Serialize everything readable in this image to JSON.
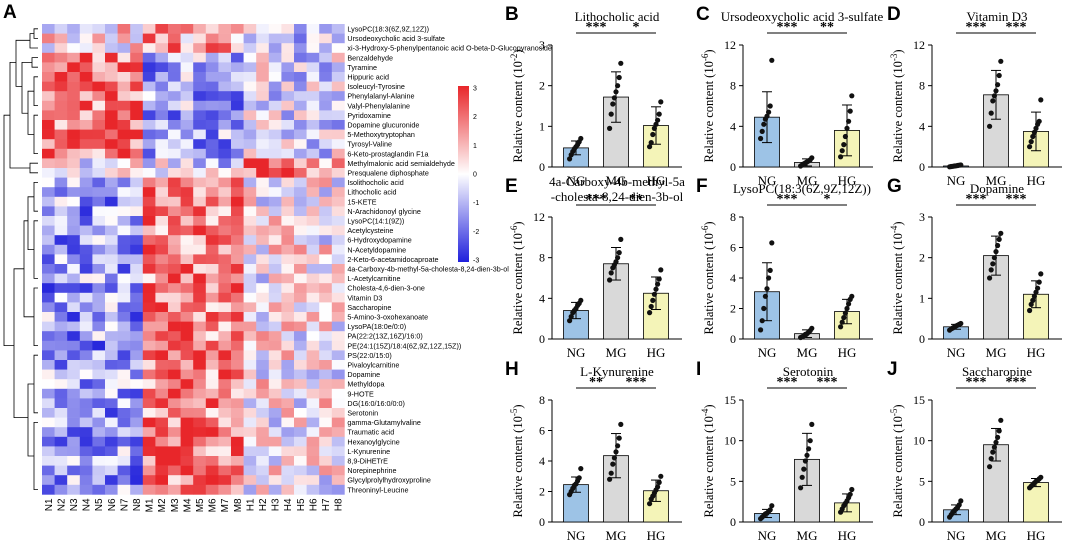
{
  "chart_data": [
    {
      "panel": "A",
      "type": "heatmap",
      "columns": [
        "N1",
        "N2",
        "N3",
        "N4",
        "N5",
        "N6",
        "N7",
        "N8",
        "M1",
        "M2",
        "M3",
        "M4",
        "M5",
        "M6",
        "M7",
        "M8",
        "H1",
        "H2",
        "H3",
        "H4",
        "H5",
        "H6",
        "H7",
        "H8"
      ],
      "rows": [
        "LysoPC(18:3(6Z,9Z,12Z))",
        "Ursodeoxycholic acid 3-sulfate",
        "xi-3-Hydroxy-5-phenylpentanoic acid O-beta-D-Glucopyranoside",
        "Benzaldehyde",
        "Tyramine",
        "Hippuric acid",
        "Isoleucyl-Tyrosine",
        "Phenylalanyl-Alanine",
        "Valyl-Phenylalanine",
        "Pyridoxamine",
        "Dopamine glucuronide",
        "5-Methoxytryptophan",
        "Tyrosyl-Valine",
        "6-Keto-prostaglandin F1a",
        "Methylmalonic acid semialdehyde",
        "Presqualene diphosphate",
        "Isolithocholic acid",
        "Lithocholic acid",
        "15-KETE",
        "N-Arachidonoyl glycine",
        "LysoPC(14:1(9Z))",
        "Acetylcysteine",
        "6-Hydroxydopamine",
        "N-Acetyldopamine",
        "2-Keto-6-acetamidocaproate",
        "4a-Carboxy-4b-methyl-5a-cholesta-8,24-dien-3b-ol",
        "L-Acetylcarnitine",
        "Cholesta-4,6-dien-3-one",
        "Vitamin D3",
        "Saccharopine",
        "5-Amino-3-oxohexanoate",
        "LysoPA(18:0e/0:0)",
        "PA(22:2(13Z,16Z)/16:0)",
        "PE(24:1(15Z)/18:4(6Z,9Z,12Z,15Z))",
        "PS(22:0/15:0)",
        "Pivaloylcarnitine",
        "Dopamine",
        "Methyldopa",
        "9-HOTE",
        "DG(16:0/16:0/0:0)",
        "Serotonin",
        "gamma-Glutamylvaline",
        "Traumatic acid",
        "Hexanoylglycine",
        "L-Kynurenine",
        "8,9-DiHETrE",
        "Norepinephrine",
        "Glycylprolylhydroxyproline",
        "Threoninyl-Leucine"
      ],
      "colorbar_ticks": [
        "3",
        "2",
        "1",
        "0",
        "-1",
        "-2",
        "-3"
      ],
      "colors": {
        "high": "#e8262a",
        "mid": "#ffffff",
        "low": "#1f1fdc"
      }
    },
    {
      "panel": "B",
      "type": "bar",
      "title": "Lithocholic acid",
      "unit_exp": "-2",
      "ylabel": "Relative content",
      "categories": [
        "NG",
        "MG",
        "HG"
      ],
      "values": [
        0.47,
        1.72,
        1.02
      ],
      "errors": [
        0.17,
        0.62,
        0.46
      ],
      "ylim": [
        0,
        3
      ],
      "yticks": [
        "0",
        "1",
        "2",
        "3"
      ],
      "sig": [
        {
          "pair": "NG-MG",
          "label": "***"
        },
        {
          "pair": "MG-HG",
          "label": "*"
        }
      ],
      "points": [
        [
          0.2,
          0.3,
          0.38,
          0.45,
          0.5,
          0.55,
          0.62,
          0.7
        ],
        [
          0.95,
          1.3,
          1.55,
          1.7,
          1.85,
          2.0,
          2.2,
          2.55
        ],
        [
          0.5,
          0.6,
          0.8,
          0.95,
          1.05,
          1.15,
          1.3,
          1.6
        ]
      ]
    },
    {
      "panel": "C",
      "type": "bar",
      "title": "Ursodeoxycholic acid 3-sulfate",
      "unit_exp": "-6",
      "ylabel": "Relative content",
      "categories": [
        "NG",
        "MG",
        "HG"
      ],
      "values": [
        4.9,
        0.45,
        3.6
      ],
      "errors": [
        2.5,
        0.35,
        2.5
      ],
      "ylim": [
        0,
        12
      ],
      "yticks": [
        "0",
        "4",
        "8",
        "12"
      ],
      "sig": [
        {
          "pair": "NG-MG",
          "label": "***"
        },
        {
          "pair": "MG-HG",
          "label": "**"
        }
      ],
      "points": [
        [
          2.8,
          3.5,
          4.2,
          4.7,
          5.0,
          5.4,
          6.0,
          10.5
        ],
        [
          0.1,
          0.2,
          0.3,
          0.4,
          0.5,
          0.6,
          0.7,
          0.9
        ],
        [
          1.0,
          1.6,
          2.2,
          3.0,
          3.8,
          4.5,
          5.5,
          7.0
        ]
      ]
    },
    {
      "panel": "D",
      "type": "bar",
      "title": "Vitamin D3",
      "unit_exp": "-3",
      "ylabel": "Relative content",
      "categories": [
        "NG",
        "MG",
        "HG"
      ],
      "values": [
        0.1,
        7.1,
        3.5
      ],
      "errors": [
        0.1,
        2.4,
        1.9
      ],
      "ylim": [
        0,
        12
      ],
      "yticks": [
        "0",
        "4",
        "8",
        "12"
      ],
      "sig": [
        {
          "pair": "NG-MG",
          "label": "***"
        },
        {
          "pair": "MG-HG",
          "label": "***"
        }
      ],
      "points": [
        [
          0.02,
          0.05,
          0.07,
          0.1,
          0.12,
          0.15,
          0.18,
          0.2
        ],
        [
          4.0,
          5.3,
          6.5,
          7.0,
          7.5,
          8.1,
          9.0,
          10.4
        ],
        [
          2.0,
          2.5,
          3.0,
          3.4,
          3.8,
          4.2,
          4.5,
          6.6
        ]
      ]
    },
    {
      "panel": "E",
      "type": "bar",
      "title": "4a-Carboxy-4b-methyl-5a-cholesta-8,24-dien-3b-ol",
      "title_lines": [
        "4a-Carboxy-4b-methyl-5a",
        "-cholesta-8,24-dien-3b-ol"
      ],
      "unit_exp": "-6",
      "ylabel": "Relative content",
      "categories": [
        "NG",
        "MG",
        "HG"
      ],
      "values": [
        2.8,
        7.4,
        4.5
      ],
      "errors": [
        0.8,
        1.6,
        1.6
      ],
      "ylim": [
        0,
        12
      ],
      "yticks": [
        "0",
        "4",
        "8",
        "12"
      ],
      "sig": [
        {
          "pair": "NG-MG",
          "label": "***"
        },
        {
          "pair": "MG-HG",
          "label": "**"
        }
      ],
      "points": [
        [
          1.8,
          2.2,
          2.6,
          2.8,
          3.0,
          3.3,
          3.5,
          3.8
        ],
        [
          5.8,
          6.5,
          7.0,
          7.3,
          7.6,
          8.0,
          8.5,
          9.8
        ],
        [
          2.6,
          3.2,
          3.8,
          4.4,
          4.9,
          5.4,
          5.9,
          6.8
        ]
      ]
    },
    {
      "panel": "F",
      "type": "bar",
      "title": "LysoPC(18:3(6Z,9Z,12Z))",
      "unit_exp": "-6",
      "ylabel": "Relative content",
      "categories": [
        "NG",
        "MG",
        "HG"
      ],
      "values": [
        3.1,
        0.35,
        1.8
      ],
      "errors": [
        1.9,
        0.25,
        0.8
      ],
      "ylim": [
        0,
        8
      ],
      "yticks": [
        "0",
        "2",
        "4",
        "6",
        "8"
      ],
      "sig": [
        {
          "pair": "NG-MG",
          "label": "***"
        },
        {
          "pair": "MG-HG",
          "label": "*"
        }
      ],
      "points": [
        [
          0.6,
          1.2,
          2.0,
          2.8,
          3.3,
          4.0,
          4.5,
          6.3
        ],
        [
          0.1,
          0.15,
          0.2,
          0.3,
          0.35,
          0.45,
          0.55,
          0.7
        ],
        [
          0.8,
          1.1,
          1.4,
          1.7,
          2.0,
          2.3,
          2.6,
          2.8
        ]
      ]
    },
    {
      "panel": "G",
      "type": "bar",
      "title": "Dopamine",
      "unit_exp": "-4",
      "ylabel": "Relative content",
      "categories": [
        "NG",
        "MG",
        "HG"
      ],
      "values": [
        0.3,
        2.05,
        1.1
      ],
      "errors": [
        0.06,
        0.48,
        0.33
      ],
      "ylim": [
        0,
        3
      ],
      "yticks": [
        "0",
        "1",
        "2",
        "3"
      ],
      "sig": [
        {
          "pair": "NG-MG",
          "label": "***"
        },
        {
          "pair": "MG-HG",
          "label": "***"
        }
      ],
      "points": [
        [
          0.22,
          0.25,
          0.27,
          0.3,
          0.32,
          0.34,
          0.36,
          0.38
        ],
        [
          1.5,
          1.7,
          1.85,
          2.0,
          2.15,
          2.3,
          2.45,
          2.6
        ],
        [
          0.7,
          0.85,
          0.95,
          1.05,
          1.15,
          1.25,
          1.4,
          1.6
        ]
      ]
    },
    {
      "panel": "H",
      "type": "bar",
      "title": "L-Kynurenine",
      "unit_exp": "-5",
      "ylabel": "Relative content",
      "categories": [
        "NG",
        "MG",
        "HG"
      ],
      "values": [
        2.45,
        4.35,
        2.05
      ],
      "errors": [
        0.5,
        1.45,
        0.7
      ],
      "ylim": [
        0,
        8
      ],
      "yticks": [
        "0",
        "2",
        "4",
        "6",
        "8"
      ],
      "sig": [
        {
          "pair": "NG-MG",
          "label": "**"
        },
        {
          "pair": "MG-HG",
          "label": "***"
        }
      ],
      "points": [
        [
          1.8,
          2.0,
          2.2,
          2.4,
          2.5,
          2.7,
          2.9,
          3.5
        ],
        [
          2.8,
          3.2,
          3.8,
          4.2,
          4.6,
          5.0,
          5.5,
          6.4
        ],
        [
          1.2,
          1.5,
          1.7,
          1.9,
          2.1,
          2.3,
          2.6,
          3.0
        ]
      ]
    },
    {
      "panel": "I",
      "type": "bar",
      "title": "Serotonin",
      "unit_exp": "-4",
      "ylabel": "Relative content",
      "categories": [
        "NG",
        "MG",
        "HG"
      ],
      "values": [
        1.05,
        7.7,
        2.35
      ],
      "errors": [
        0.5,
        3.2,
        1.1
      ],
      "ylim": [
        0,
        15
      ],
      "yticks": [
        "0",
        "5",
        "10",
        "15"
      ],
      "sig": [
        {
          "pair": "NG-MG",
          "label": "***"
        },
        {
          "pair": "MG-HG",
          "label": "***"
        }
      ],
      "points": [
        [
          0.4,
          0.6,
          0.8,
          1.0,
          1.1,
          1.3,
          1.5,
          2.0
        ],
        [
          4.2,
          5.5,
          6.5,
          7.5,
          8.2,
          9.0,
          10.0,
          12.0
        ],
        [
          1.2,
          1.6,
          2.0,
          2.3,
          2.6,
          3.0,
          3.4,
          4.0
        ]
      ]
    },
    {
      "panel": "J",
      "type": "bar",
      "title": "Saccharopine",
      "unit_exp": "-5",
      "ylabel": "Relative content",
      "categories": [
        "NG",
        "MG",
        "HG"
      ],
      "values": [
        1.5,
        9.5,
        4.85
      ],
      "errors": [
        0.6,
        2.0,
        0.5
      ],
      "ylim": [
        0,
        15
      ],
      "yticks": [
        "0",
        "5",
        "10",
        "15"
      ],
      "sig": [
        {
          "pair": "NG-MG",
          "label": "***"
        },
        {
          "pair": "MG-HG",
          "label": "***"
        }
      ],
      "points": [
        [
          0.6,
          0.9,
          1.2,
          1.4,
          1.6,
          1.8,
          2.1,
          2.6
        ],
        [
          6.8,
          7.8,
          8.6,
          9.2,
          9.8,
          10.4,
          11.2,
          12.5
        ],
        [
          4.2,
          4.4,
          4.6,
          4.8,
          5.0,
          5.1,
          5.3,
          5.5
        ]
      ]
    }
  ],
  "colors": {
    "NG": "#9dc3e6",
    "MG": "#d9d9d9",
    "HG": "#f4f4b8"
  }
}
